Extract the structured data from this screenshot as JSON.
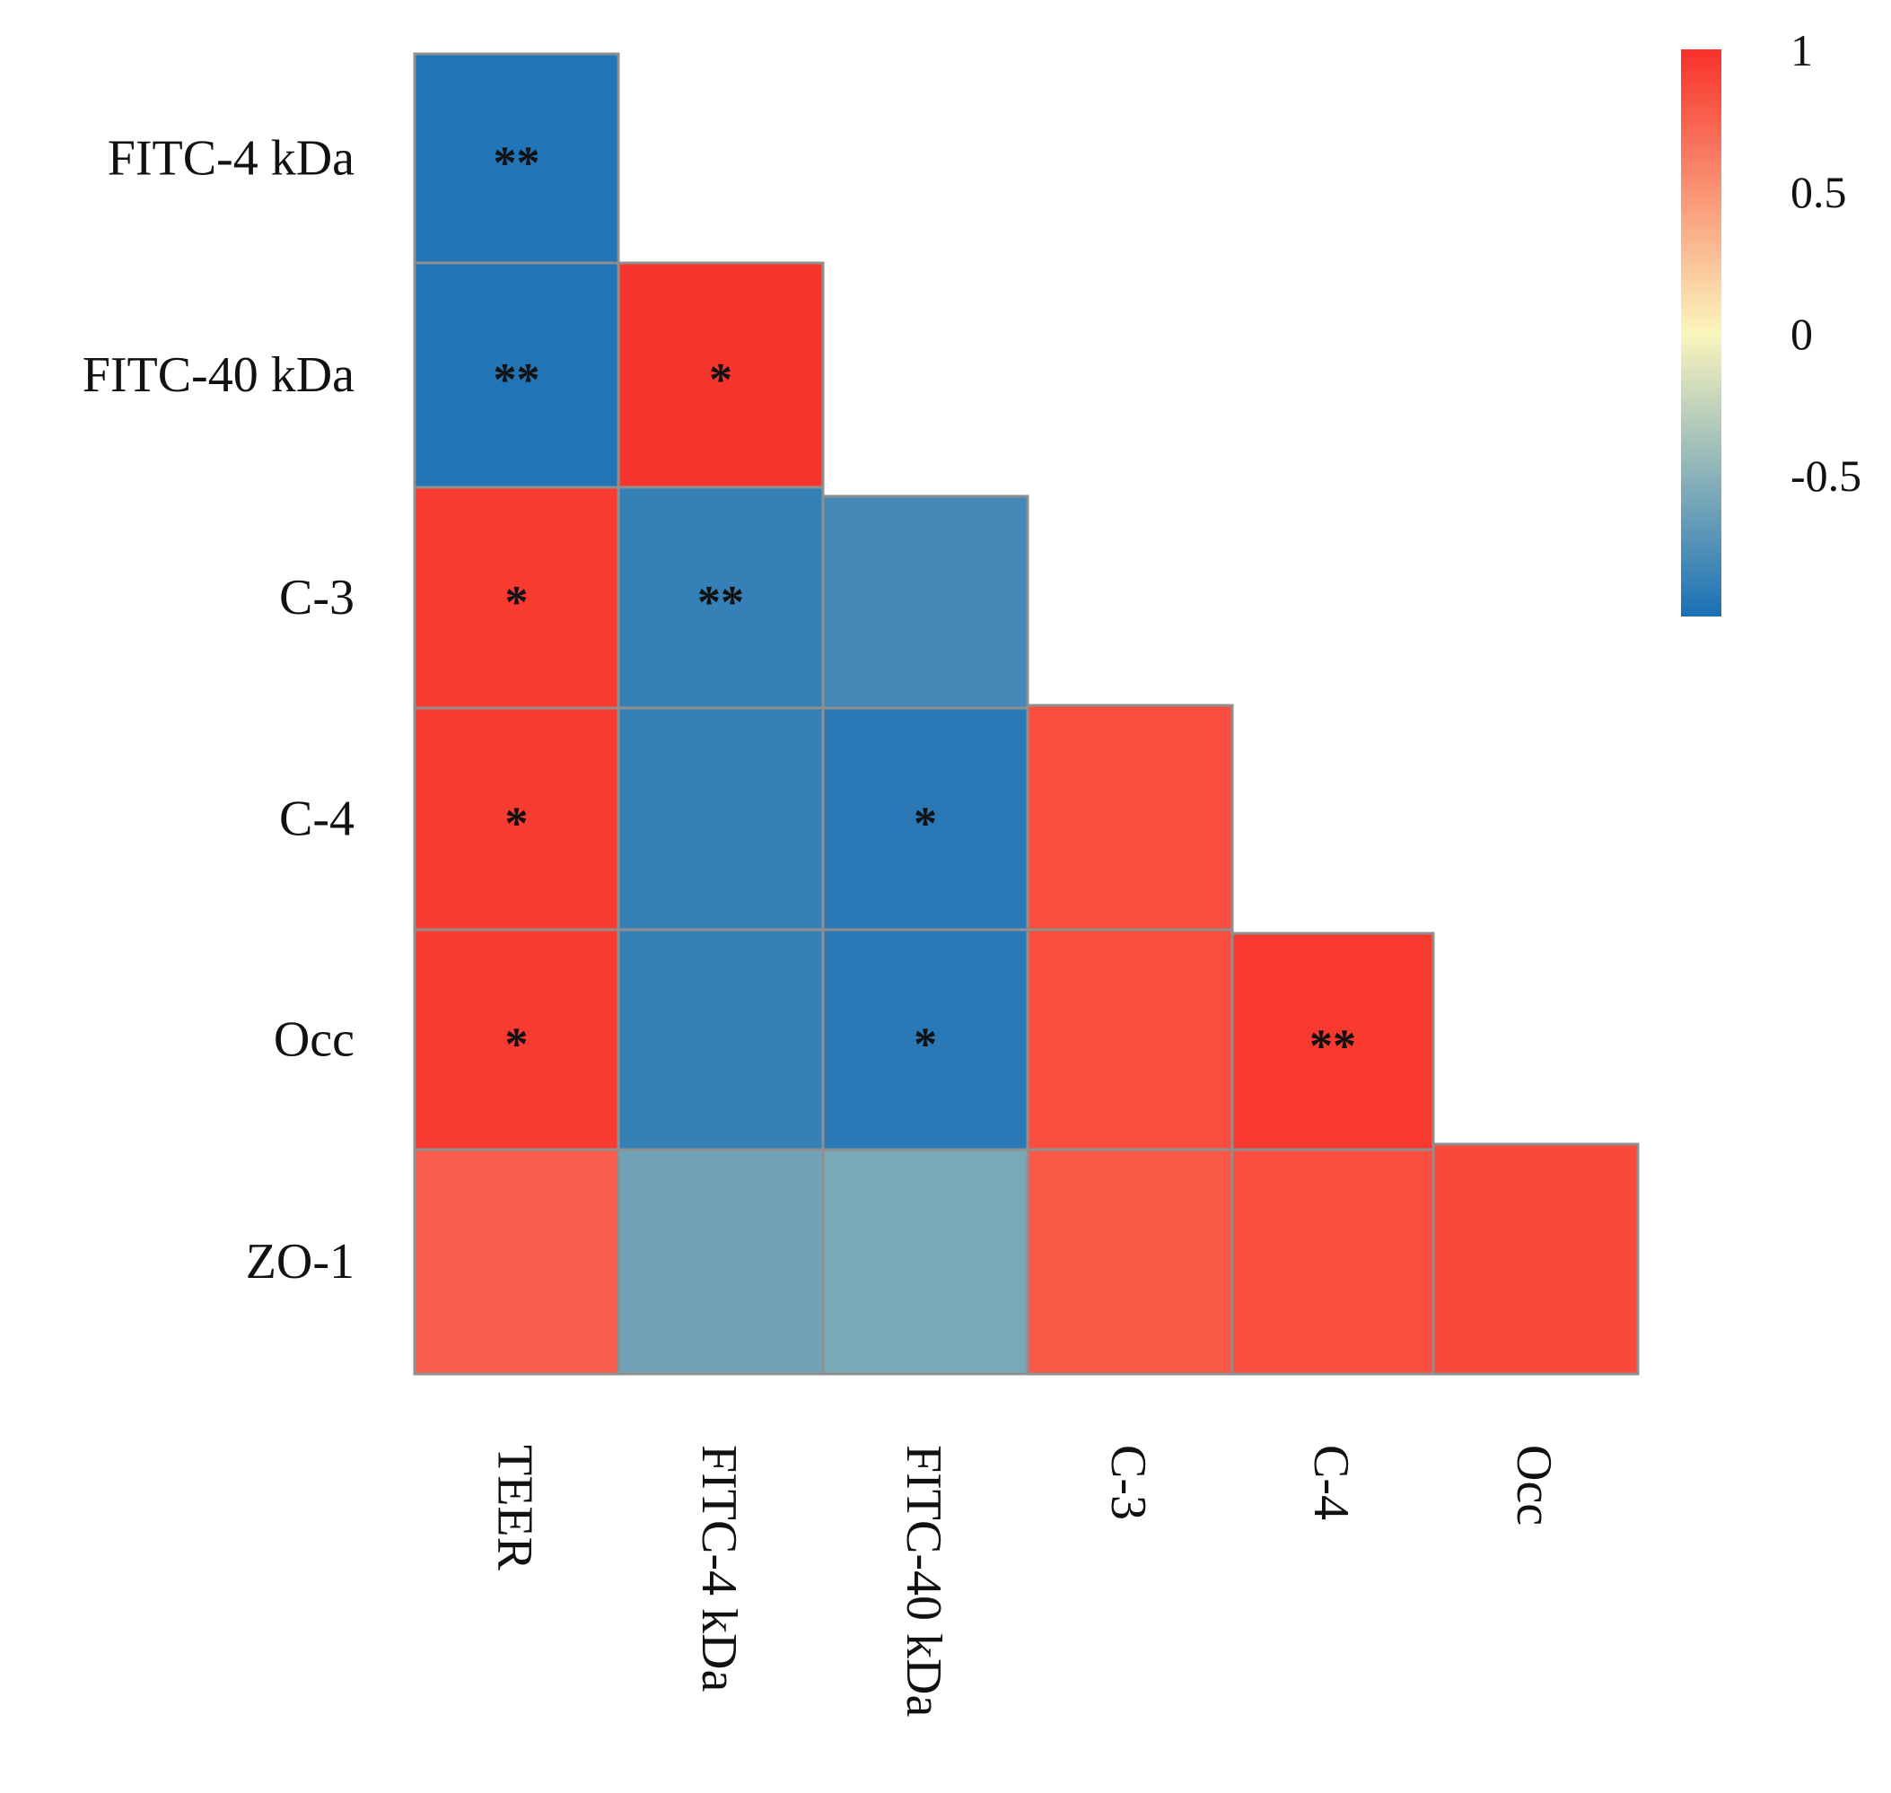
{
  "chart_data": {
    "type": "heatmap",
    "subtype": "lower-triangle correlation matrix",
    "title": "",
    "row_labels": [
      "FITC-4 kDa",
      "FITC-40 kDa",
      "C-3",
      "C-4",
      "Occ",
      "ZO-1"
    ],
    "column_labels": [
      "TEER",
      "FITC-4 kDa",
      "FITC-40 kDa",
      "C-3",
      "C-4",
      "Occ"
    ],
    "values": [
      [
        -0.97,
        null,
        null,
        null,
        null,
        null
      ],
      [
        -0.97,
        0.98,
        null,
        null,
        null,
        null
      ],
      [
        0.95,
        -0.88,
        -0.82,
        null,
        null,
        null
      ],
      [
        0.95,
        -0.88,
        -0.93,
        0.85,
        null,
        null
      ],
      [
        0.95,
        -0.88,
        -0.93,
        0.85,
        0.96,
        null
      ],
      [
        0.78,
        -0.62,
        -0.58,
        0.8,
        0.85,
        0.88
      ]
    ],
    "significance": [
      [
        "**",
        null,
        null,
        null,
        null,
        null
      ],
      [
        "**",
        "*",
        null,
        null,
        null,
        null
      ],
      [
        "*",
        "**",
        "",
        null,
        null,
        null
      ],
      [
        "*",
        "",
        "*",
        "",
        null,
        null
      ],
      [
        "*",
        "",
        "*",
        "",
        "**",
        null
      ],
      [
        "",
        "",
        "",
        "",
        "",
        ""
      ]
    ],
    "colorbar": {
      "range": [
        -1,
        1
      ],
      "ticks": [
        1,
        0.5,
        0,
        -0.5
      ],
      "tick_labels": [
        "1",
        "0.5",
        "0",
        "-0.5"
      ],
      "colors": {
        "positive": "#f8312a",
        "mid": "#fbf5bd",
        "negative": "#1a70b5"
      }
    }
  }
}
